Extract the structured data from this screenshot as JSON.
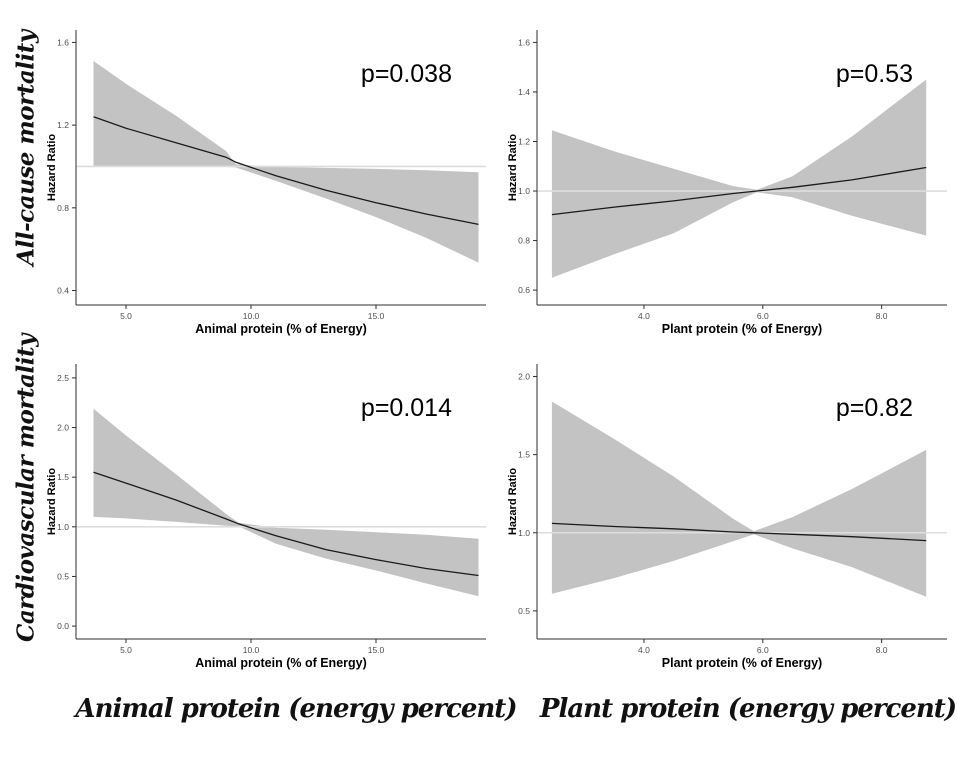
{
  "page": {
    "row_labels": [
      {
        "text": "All-cause mortality"
      },
      {
        "text": "Cardiovascular mortality"
      }
    ],
    "column_captions": [
      {
        "text": "Animal protein (energy percent)"
      },
      {
        "text": "Plant protein (energy percent)"
      }
    ]
  },
  "theme": {
    "band_color": "#c3c3c3",
    "trend_color": "#1a1a1a",
    "ref_line_color": "#dedede",
    "axis_color": "#2e2e2e",
    "tick_text_color": "#4d4d4d",
    "title_text_color": "#000000"
  },
  "chart_data": [
    {
      "type": "area",
      "id": "all-cause-animal",
      "row": "All-cause mortality",
      "p_label": "p=0.038",
      "xlabel": "Animal protein (% of Energy)",
      "ylabel": "Hazard Ratio",
      "legend": "none",
      "grid": false,
      "xlim": [
        3.0,
        19.4
      ],
      "ylim": [
        0.33,
        1.66
      ],
      "x_ticks": [
        5,
        10,
        15
      ],
      "x_tick_labels": [
        "5.0",
        "10.0",
        "15.0"
      ],
      "y_ticks": [
        0.4,
        0.8,
        1.2,
        1.6
      ],
      "y_tick_labels": [
        "0.4",
        "0.8",
        "1.2",
        "1.6"
      ],
      "ref_line_y": 1.0,
      "x": [
        3.7,
        5.0,
        7.0,
        9.0,
        9.4,
        11.0,
        13.0,
        15.0,
        17.0,
        19.1
      ],
      "line": [
        1.24,
        1.185,
        1.115,
        1.045,
        1.02,
        0.955,
        0.885,
        0.825,
        0.77,
        0.72
      ],
      "upper": [
        1.51,
        1.4,
        1.245,
        1.075,
        1.01,
        0.998,
        0.993,
        0.988,
        0.982,
        0.972
      ],
      "lower": [
        1.0,
        1.0,
        1.0,
        0.998,
        0.995,
        0.93,
        0.845,
        0.755,
        0.655,
        0.535
      ]
    },
    {
      "type": "area",
      "id": "all-cause-plant",
      "row": "All-cause mortality",
      "p_label": "p=0.53",
      "xlabel": "Plant protein (% of Energy)",
      "ylabel": "Hazard Ratio",
      "legend": "none",
      "grid": false,
      "xlim": [
        2.2,
        9.1
      ],
      "ylim": [
        0.54,
        1.65
      ],
      "x_ticks": [
        4,
        6,
        8
      ],
      "x_tick_labels": [
        "4.0",
        "6.0",
        "8.0"
      ],
      "y_ticks": [
        0.6,
        0.8,
        1.0,
        1.2,
        1.4,
        1.6
      ],
      "y_tick_labels": [
        "0.6",
        "0.8",
        "1.0",
        "1.2",
        "1.4",
        "1.6"
      ],
      "ref_line_y": 1.0,
      "x": [
        2.45,
        3.5,
        4.5,
        5.5,
        5.9,
        6.5,
        7.5,
        8.75
      ],
      "line": [
        0.905,
        0.935,
        0.96,
        0.99,
        1.0,
        1.015,
        1.045,
        1.095
      ],
      "upper": [
        1.245,
        1.16,
        1.09,
        1.02,
        1.005,
        1.06,
        1.22,
        1.45
      ],
      "lower": [
        0.65,
        0.745,
        0.83,
        0.955,
        0.995,
        0.975,
        0.9,
        0.82
      ]
    },
    {
      "type": "area",
      "id": "cardiovascular-animal",
      "row": "Cardiovascular mortality",
      "p_label": "p=0.014",
      "xlabel": "Animal protein (% of Energy)",
      "ylabel": "Hazard Ratio",
      "legend": "none",
      "grid": false,
      "xlim": [
        3.0,
        19.4
      ],
      "ylim": [
        -0.13,
        2.64
      ],
      "x_ticks": [
        5,
        10,
        15
      ],
      "x_tick_labels": [
        "5.0",
        "10.0",
        "15.0"
      ],
      "y_ticks": [
        0.0,
        0.5,
        1.0,
        1.5,
        2.0,
        2.5
      ],
      "y_tick_labels": [
        "0.0",
        "0.5",
        "1.0",
        "1.5",
        "2.0",
        "2.5"
      ],
      "ref_line_y": 1.0,
      "x": [
        3.7,
        5.0,
        7.0,
        9.0,
        9.5,
        11.0,
        13.0,
        15.0,
        17.0,
        19.1
      ],
      "line": [
        1.55,
        1.44,
        1.27,
        1.08,
        1.03,
        0.91,
        0.77,
        0.67,
        0.58,
        0.51
      ],
      "upper": [
        2.19,
        1.92,
        1.53,
        1.13,
        1.04,
        0.99,
        0.97,
        0.945,
        0.92,
        0.88
      ],
      "lower": [
        1.1,
        1.085,
        1.05,
        1.01,
        1.005,
        0.83,
        0.68,
        0.56,
        0.43,
        0.3
      ]
    },
    {
      "type": "area",
      "id": "cardiovascular-plant",
      "row": "Cardiovascular mortality",
      "p_label": "p=0.82",
      "xlabel": "Plant protein (% of Energy)",
      "ylabel": "Hazard Ratio",
      "legend": "none",
      "grid": false,
      "xlim": [
        2.2,
        9.1
      ],
      "ylim": [
        0.32,
        2.08
      ],
      "x_ticks": [
        4,
        6,
        8
      ],
      "x_tick_labels": [
        "4.0",
        "6.0",
        "8.0"
      ],
      "y_ticks": [
        0.5,
        1.0,
        1.5,
        2.0
      ],
      "y_tick_labels": [
        "0.5",
        "1.0",
        "1.5",
        "2.0"
      ],
      "ref_line_y": 1.0,
      "x": [
        2.45,
        3.5,
        4.5,
        5.5,
        5.85,
        6.5,
        7.5,
        8.75
      ],
      "line": [
        1.06,
        1.04,
        1.025,
        1.005,
        1.0,
        0.99,
        0.975,
        0.95
      ],
      "upper": [
        1.84,
        1.6,
        1.36,
        1.09,
        1.01,
        1.1,
        1.28,
        1.53
      ],
      "lower": [
        0.61,
        0.71,
        0.82,
        0.945,
        0.99,
        0.9,
        0.78,
        0.59
      ]
    }
  ]
}
